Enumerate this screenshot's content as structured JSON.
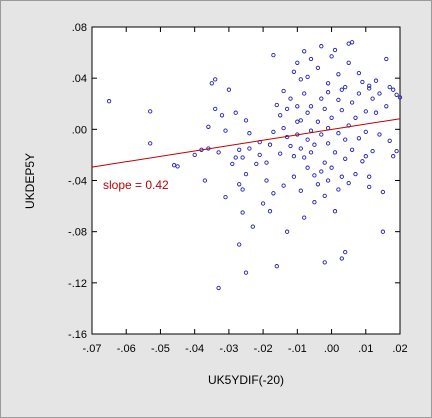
{
  "chart_data": {
    "type": "scatter",
    "xlabel": "UK5YDIF(-20)",
    "ylabel": "UKDEP5Y",
    "xlim": [
      -0.07,
      0.02
    ],
    "ylim": [
      -0.16,
      0.08
    ],
    "xticks": [
      -0.07,
      -0.06,
      -0.05,
      -0.04,
      -0.03,
      -0.02,
      -0.01,
      0.0,
      0.01,
      0.02
    ],
    "xtick_labels": [
      "-.07",
      "-.06",
      "-.05",
      "-.04",
      "-.03",
      "-.02",
      "-.01",
      ".00",
      ".01",
      ".02"
    ],
    "yticks": [
      -0.16,
      -0.12,
      -0.08,
      -0.04,
      0.0,
      0.04,
      0.08
    ],
    "ytick_labels": [
      "-.16",
      "-.12",
      "-.08",
      "-.04",
      ".00",
      ".04",
      ".08"
    ],
    "grid": false,
    "colors": {
      "points": "#2222bb",
      "fit_line": "#c00000",
      "plot_bg": "#ffffff",
      "frame_bg": "#e5e5e5"
    },
    "fit_line": {
      "x": [
        -0.07,
        0.02
      ],
      "y": [
        -0.0295,
        0.0083
      ]
    },
    "annotation": "slope = 0.42",
    "points": [
      [
        -0.065,
        0.022
      ],
      [
        -0.053,
        0.014
      ],
      [
        -0.053,
        -0.011
      ],
      [
        -0.046,
        -0.028
      ],
      [
        -0.045,
        -0.029
      ],
      [
        -0.04,
        -0.02
      ],
      [
        -0.038,
        -0.016
      ],
      [
        -0.037,
        -0.04
      ],
      [
        -0.036,
        -0.015
      ],
      [
        -0.036,
        0.002
      ],
      [
        -0.035,
        0.036
      ],
      [
        -0.034,
        0.039
      ],
      [
        -0.034,
        0.016
      ],
      [
        -0.033,
        -0.018
      ],
      [
        -0.033,
        -0.124
      ],
      [
        -0.032,
        0.011
      ],
      [
        -0.031,
        -0.053
      ],
      [
        -0.031,
        -0.001
      ],
      [
        -0.03,
        0.031
      ],
      [
        -0.029,
        -0.027
      ],
      [
        -0.028,
        0.013
      ],
      [
        -0.028,
        -0.022
      ],
      [
        -0.027,
        -0.09
      ],
      [
        -0.027,
        -0.016
      ],
      [
        -0.027,
        -0.043
      ],
      [
        -0.026,
        -0.065
      ],
      [
        -0.026,
        -0.022
      ],
      [
        -0.026,
        -0.047
      ],
      [
        -0.025,
        -0.035
      ],
      [
        -0.025,
        -0.112
      ],
      [
        -0.025,
        0.007
      ],
      [
        -0.024,
        -0.003
      ],
      [
        -0.024,
        -0.015
      ],
      [
        -0.023,
        -0.076
      ],
      [
        -0.022,
        -0.027
      ],
      [
        -0.021,
        -0.01
      ],
      [
        -0.021,
        -0.02
      ],
      [
        -0.02,
        -0.058
      ],
      [
        -0.019,
        -0.04
      ],
      [
        -0.019,
        -0.026
      ],
      [
        -0.018,
        -0.012
      ],
      [
        -0.018,
        -0.064
      ],
      [
        -0.017,
        -0.002
      ],
      [
        -0.017,
        0.058
      ],
      [
        -0.017,
        -0.05
      ],
      [
        -0.016,
        0.019
      ],
      [
        -0.016,
        -0.107
      ],
      [
        -0.015,
        -0.019
      ],
      [
        -0.015,
        0.011
      ],
      [
        -0.014,
        0.001
      ],
      [
        -0.014,
        0.03
      ],
      [
        -0.014,
        -0.044
      ],
      [
        -0.013,
        -0.006
      ],
      [
        -0.013,
        0.016
      ],
      [
        -0.013,
        -0.08
      ],
      [
        -0.012,
        0.024
      ],
      [
        -0.012,
        -0.013
      ],
      [
        -0.011,
        0.045
      ],
      [
        -0.011,
        -0.021
      ],
      [
        -0.011,
        -0.037
      ],
      [
        -0.01,
        0.006
      ],
      [
        -0.01,
        0.018
      ],
      [
        -0.01,
        -0.004
      ],
      [
        -0.01,
        0.052
      ],
      [
        -0.009,
        0.039
      ],
      [
        -0.009,
        0.007
      ],
      [
        -0.009,
        -0.015
      ],
      [
        -0.009,
        -0.048
      ],
      [
        -0.008,
        0.061
      ],
      [
        -0.008,
        0.028
      ],
      [
        -0.008,
        -0.022
      ],
      [
        -0.008,
        -0.069
      ],
      [
        -0.007,
        -0.008
      ],
      [
        -0.007,
        0.013
      ],
      [
        -0.007,
        0.041
      ],
      [
        -0.007,
        -0.03
      ],
      [
        -0.006,
        -0.001
      ],
      [
        -0.006,
        0.018
      ],
      [
        -0.006,
        -0.018
      ],
      [
        -0.006,
        0.055
      ],
      [
        -0.005,
        -0.012
      ],
      [
        -0.005,
        -0.036
      ],
      [
        -0.005,
        -0.057
      ],
      [
        -0.004,
        0.048
      ],
      [
        -0.004,
        -0.043
      ],
      [
        -0.004,
        0.006
      ],
      [
        -0.003,
        0.024
      ],
      [
        -0.003,
        -0.033
      ],
      [
        -0.003,
        -0.004
      ],
      [
        -0.003,
        0.065
      ],
      [
        -0.002,
        0.016
      ],
      [
        -0.002,
        -0.026
      ],
      [
        -0.002,
        -0.052
      ],
      [
        -0.002,
        -0.104
      ],
      [
        -0.001,
        0.036
      ],
      [
        -0.001,
        0.029
      ],
      [
        -0.001,
        -0.011
      ],
      [
        -0.001,
        0.001
      ],
      [
        -0.001,
        -0.04
      ],
      [
        0.0,
        0.057
      ],
      [
        0.0,
        0.009
      ],
      [
        0.0,
        -0.03
      ],
      [
        0.001,
        -0.018
      ],
      [
        0.001,
        0.062
      ],
      [
        0.001,
        -0.064
      ],
      [
        0.002,
        0.043
      ],
      [
        0.002,
        -0.003
      ],
      [
        0.002,
        0.023
      ],
      [
        0.002,
        -0.047
      ],
      [
        0.003,
        -0.101
      ],
      [
        0.003,
        0.031
      ],
      [
        0.003,
        -0.037
      ],
      [
        0.003,
        0.015
      ],
      [
        0.004,
        0.033
      ],
      [
        0.004,
        -0.008
      ],
      [
        0.004,
        -0.096
      ],
      [
        0.004,
        -0.023
      ],
      [
        0.005,
        0.067
      ],
      [
        0.005,
        -0.042
      ],
      [
        0.005,
        0.052
      ],
      [
        0.005,
        0.003
      ],
      [
        0.006,
        0.021
      ],
      [
        0.006,
        -0.016
      ],
      [
        0.006,
        0.068
      ],
      [
        0.007,
        -0.035
      ],
      [
        0.007,
        0.009
      ],
      [
        0.008,
        -0.007
      ],
      [
        0.008,
        0.028
      ],
      [
        0.008,
        0.044
      ],
      [
        0.009,
        -0.025
      ],
      [
        0.009,
        0.037
      ],
      [
        0.01,
        0.014
      ],
      [
        0.01,
        -0.021
      ],
      [
        0.01,
        -0.002
      ],
      [
        0.011,
        0.032
      ],
      [
        0.011,
        -0.045
      ],
      [
        0.011,
        0.034
      ],
      [
        0.011,
        -0.037
      ],
      [
        0.012,
        -0.017
      ],
      [
        0.012,
        0.024
      ],
      [
        0.013,
        0.038
      ],
      [
        0.013,
        0.013
      ],
      [
        0.014,
        -0.004
      ],
      [
        0.014,
        0.028
      ],
      [
        0.015,
        -0.08
      ],
      [
        0.015,
        -0.049
      ],
      [
        0.016,
        0.018
      ],
      [
        0.016,
        0.055
      ],
      [
        0.017,
        0.033
      ],
      [
        0.017,
        -0.009
      ],
      [
        0.018,
        -0.021
      ],
      [
        0.018,
        0.031
      ],
      [
        0.019,
        0.027
      ],
      [
        0.019,
        -0.017
      ],
      [
        0.02,
        0.025
      ]
    ]
  }
}
